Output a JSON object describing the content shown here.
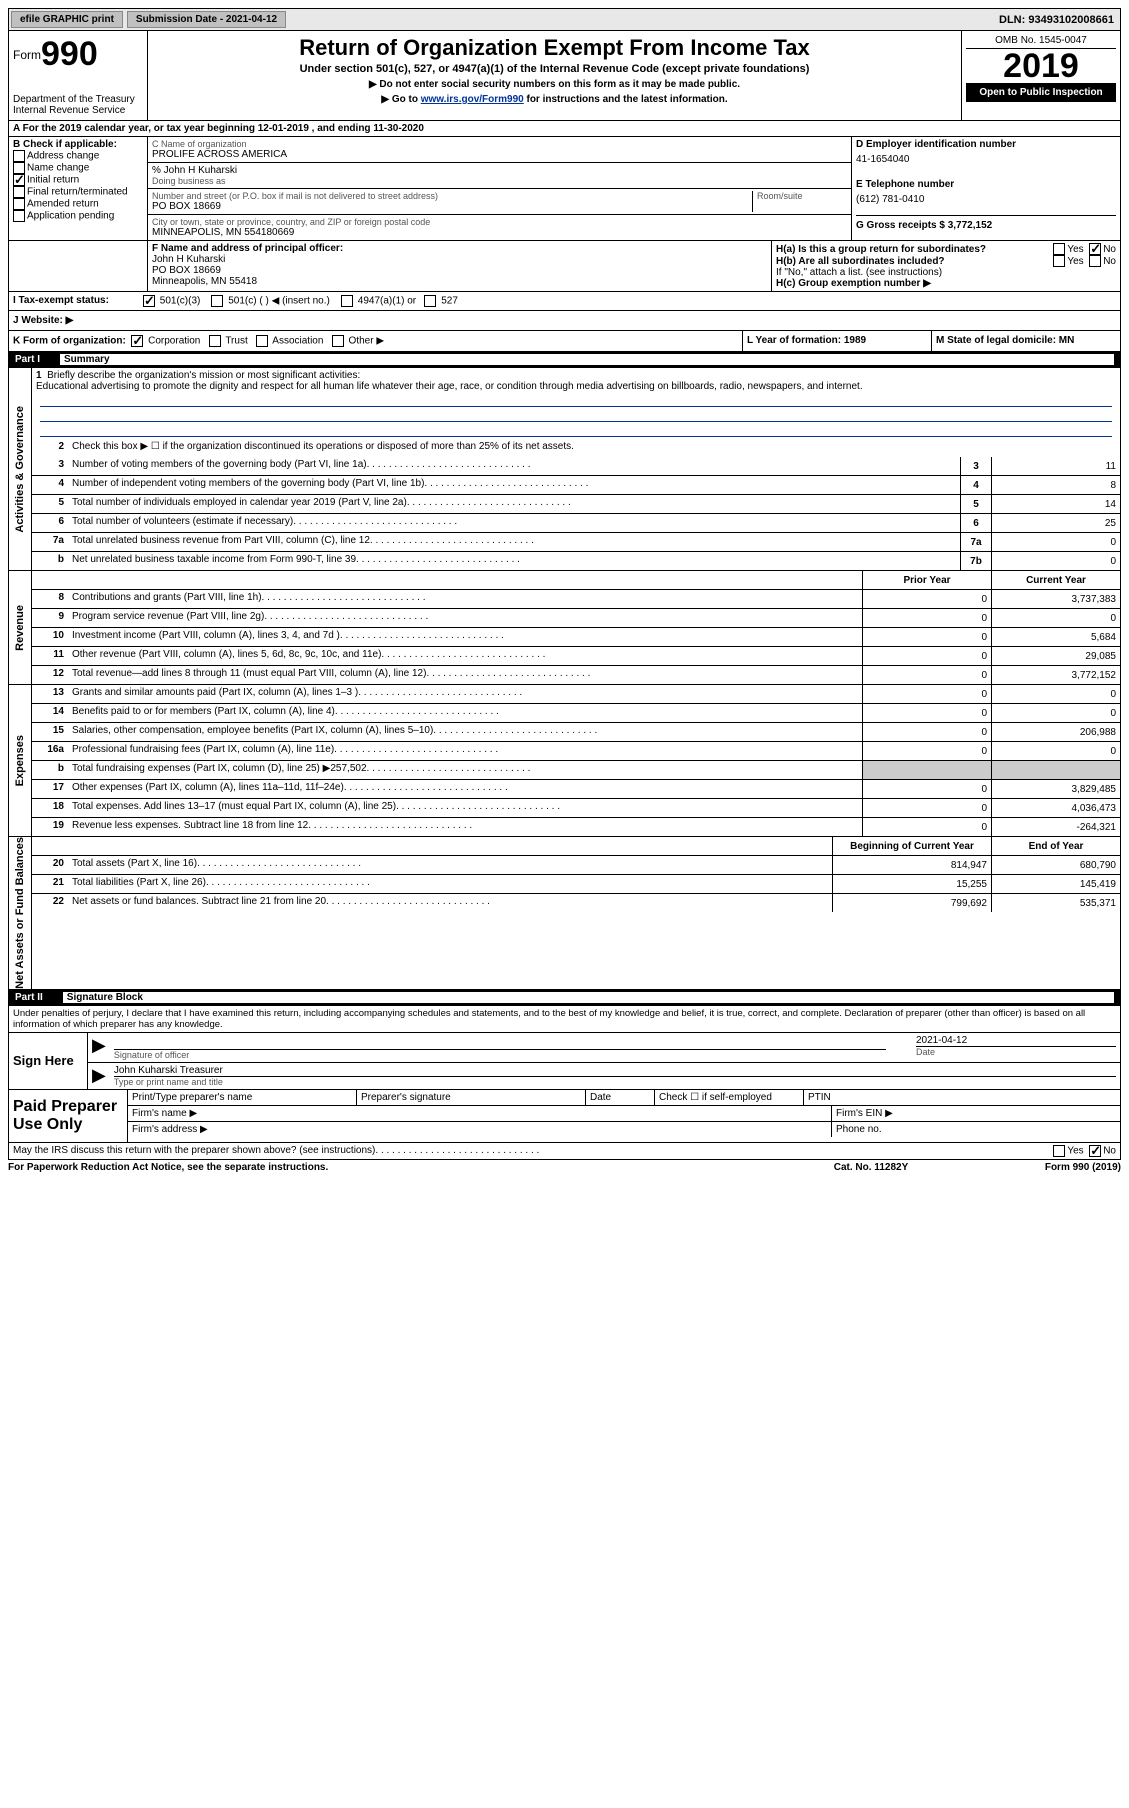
{
  "top_bar": {
    "efile_label": "efile GRAPHIC print",
    "submission_date_label": "Submission Date - 2021-04-12",
    "dln_label": "DLN: 93493102008661",
    "colors": {
      "bg": "#e8e8e8",
      "btn_bg": "#c0c0c0"
    }
  },
  "header": {
    "form_label": "Form",
    "form_number": "990",
    "dept": "Department of the Treasury",
    "irs": "Internal Revenue Service",
    "title": "Return of Organization Exempt From Income Tax",
    "subtitle": "Under section 501(c), 527, or 4947(a)(1) of the Internal Revenue Code (except private foundations)",
    "instr1": "▶ Do not enter social security numbers on this form as it may be made public.",
    "instr2_pre": "▶ Go to ",
    "instr2_link": "www.irs.gov/Form990",
    "instr2_post": " for instructions and the latest information.",
    "omb": "OMB No. 1545-0047",
    "year": "2019",
    "open_inspection": "Open to Public Inspection"
  },
  "line_a": "A For the 2019 calendar year, or tax year beginning 12-01-2019   , and ending 11-30-2020",
  "section_b": {
    "label": "B Check if applicable:",
    "items": [
      {
        "label": "Address change",
        "checked": false
      },
      {
        "label": "Name change",
        "checked": false
      },
      {
        "label": "Initial return",
        "checked": true
      },
      {
        "label": "Final return/terminated",
        "checked": false
      },
      {
        "label": "Amended return",
        "checked": false
      },
      {
        "label": "Application pending",
        "checked": false
      }
    ]
  },
  "section_c": {
    "name_label": "C Name of organization",
    "name": "PROLIFE ACROSS AMERICA",
    "care_of": "% John H Kuharski",
    "dba_label": "Doing business as",
    "addr_label": "Number and street (or P.O. box if mail is not delivered to street address)",
    "room_label": "Room/suite",
    "addr": "PO BOX 18669",
    "city_label": "City or town, state or province, country, and ZIP or foreign postal code",
    "city": "MINNEAPOLIS, MN  554180669"
  },
  "section_d": {
    "label": "D Employer identification number",
    "value": "41-1654040"
  },
  "section_e": {
    "label": "E Telephone number",
    "value": "(612) 781-0410"
  },
  "section_g": {
    "label": "G Gross receipts $ 3,772,152"
  },
  "section_f": {
    "label": "F  Name and address of principal officer:",
    "name": "John H Kuharski",
    "addr": "PO BOX 18669",
    "city": "Minneapolis, MN  55418"
  },
  "section_h": {
    "a": "H(a)  Is this a group return for subordinates?",
    "a_yes": false,
    "a_no": true,
    "b": "H(b)  Are all subordinates included?",
    "b_yes": false,
    "b_no": false,
    "b_note": "If \"No,\" attach a list. (see instructions)",
    "c": "H(c)  Group exemption number ▶"
  },
  "tax_status": {
    "label": "I   Tax-exempt status:",
    "c501c3": true,
    "c501c": false,
    "c501c_insert": "◀ (insert no.)",
    "c4947": false,
    "c4947_label": "4947(a)(1) or",
    "c527": false
  },
  "website": {
    "label": "J   Website: ▶"
  },
  "section_k": {
    "label": "K Form of organization:",
    "corp": true,
    "trust": false,
    "assoc": false,
    "other": false,
    "l_label": "L Year of formation: 1989",
    "m_label": "M State of legal domicile: MN"
  },
  "part1": {
    "header_num": "Part I",
    "header_title": "Summary",
    "mission_label": "Briefly describe the organization's mission or most significant activities:",
    "mission": "Educational advertising to promote the dignity and respect for all human life whatever their age, race, or condition through media advertising on billboards, radio, newspapers, and internet.",
    "line2": "Check this box ▶ ☐  if the organization discontinued its operations or disposed of more than 25% of its net assets.",
    "rows_gov": [
      {
        "n": "3",
        "desc": "Number of voting members of the governing body (Part VI, line 1a)",
        "box": "3",
        "val": "11"
      },
      {
        "n": "4",
        "desc": "Number of independent voting members of the governing body (Part VI, line 1b)",
        "box": "4",
        "val": "8"
      },
      {
        "n": "5",
        "desc": "Total number of individuals employed in calendar year 2019 (Part V, line 2a)",
        "box": "5",
        "val": "14"
      },
      {
        "n": "6",
        "desc": "Total number of volunteers (estimate if necessary)",
        "box": "6",
        "val": "25"
      },
      {
        "n": "7a",
        "desc": "Total unrelated business revenue from Part VIII, column (C), line 12",
        "box": "7a",
        "val": "0"
      },
      {
        "n": "b",
        "desc": "Net unrelated business taxable income from Form 990-T, line 39",
        "box": "7b",
        "val": "0"
      }
    ],
    "col_headers": {
      "prior": "Prior Year",
      "current": "Current Year"
    },
    "rows_rev": [
      {
        "n": "8",
        "desc": "Contributions and grants (Part VIII, line 1h)",
        "prior": "0",
        "curr": "3,737,383"
      },
      {
        "n": "9",
        "desc": "Program service revenue (Part VIII, line 2g)",
        "prior": "0",
        "curr": "0"
      },
      {
        "n": "10",
        "desc": "Investment income (Part VIII, column (A), lines 3, 4, and 7d )",
        "prior": "0",
        "curr": "5,684"
      },
      {
        "n": "11",
        "desc": "Other revenue (Part VIII, column (A), lines 5, 6d, 8c, 9c, 10c, and 11e)",
        "prior": "0",
        "curr": "29,085"
      },
      {
        "n": "12",
        "desc": "Total revenue—add lines 8 through 11 (must equal Part VIII, column (A), line 12)",
        "prior": "0",
        "curr": "3,772,152"
      }
    ],
    "rows_exp": [
      {
        "n": "13",
        "desc": "Grants and similar amounts paid (Part IX, column (A), lines 1–3 )",
        "prior": "0",
        "curr": "0"
      },
      {
        "n": "14",
        "desc": "Benefits paid to or for members (Part IX, column (A), line 4)",
        "prior": "0",
        "curr": "0"
      },
      {
        "n": "15",
        "desc": "Salaries, other compensation, employee benefits (Part IX, column (A), lines 5–10)",
        "prior": "0",
        "curr": "206,988"
      },
      {
        "n": "16a",
        "desc": "Professional fundraising fees (Part IX, column (A), line 11e)",
        "prior": "0",
        "curr": "0"
      },
      {
        "n": "b",
        "desc": "Total fundraising expenses (Part IX, column (D), line 25) ▶257,502",
        "prior": "shade",
        "curr": "shade"
      },
      {
        "n": "17",
        "desc": "Other expenses (Part IX, column (A), lines 11a–11d, 11f–24e)",
        "prior": "0",
        "curr": "3,829,485"
      },
      {
        "n": "18",
        "desc": "Total expenses. Add lines 13–17 (must equal Part IX, column (A), line 25)",
        "prior": "0",
        "curr": "4,036,473"
      },
      {
        "n": "19",
        "desc": "Revenue less expenses. Subtract line 18 from line 12",
        "prior": "0",
        "curr": "-264,321"
      }
    ],
    "net_headers": {
      "begin": "Beginning of Current Year",
      "end": "End of Year"
    },
    "rows_net": [
      {
        "n": "20",
        "desc": "Total assets (Part X, line 16)",
        "prior": "814,947",
        "curr": "680,790"
      },
      {
        "n": "21",
        "desc": "Total liabilities (Part X, line 26)",
        "prior": "15,255",
        "curr": "145,419"
      },
      {
        "n": "22",
        "desc": "Net assets or fund balances. Subtract line 21 from line 20",
        "prior": "799,692",
        "curr": "535,371"
      }
    ],
    "side_labels": {
      "gov": "Activities & Governance",
      "rev": "Revenue",
      "exp": "Expenses",
      "net": "Net Assets or Fund Balances"
    }
  },
  "part2": {
    "header_num": "Part II",
    "header_title": "Signature Block",
    "penalty": "Under penalties of perjury, I declare that I have examined this return, including accompanying schedules and statements, and to the best of my knowledge and belief, it is true, correct, and complete. Declaration of preparer (other than officer) is based on all information of which preparer has any knowledge.",
    "sign_here": "Sign Here",
    "sig_officer_label": "Signature of officer",
    "sig_date_label": "Date",
    "sig_date": "2021-04-12",
    "sig_name": "John Kuharski  Treasurer",
    "sig_type_label": "Type or print name and title",
    "paid_prep": "Paid Preparer Use Only",
    "prep_name_label": "Print/Type preparer's name",
    "prep_sig_label": "Preparer's signature",
    "prep_date_label": "Date",
    "prep_check_label": "Check ☐ if self-employed",
    "prep_ptin_label": "PTIN",
    "firm_name_label": "Firm's name    ▶",
    "firm_ein_label": "Firm's EIN ▶",
    "firm_addr_label": "Firm's address ▶",
    "firm_phone_label": "Phone no."
  },
  "footer": {
    "discuss": "May the IRS discuss this return with the preparer shown above? (see instructions)",
    "yes": false,
    "no": true,
    "paperwork": "For Paperwork Reduction Act Notice, see the separate instructions.",
    "cat": "Cat. No. 11282Y",
    "form": "Form 990 (2019)"
  }
}
